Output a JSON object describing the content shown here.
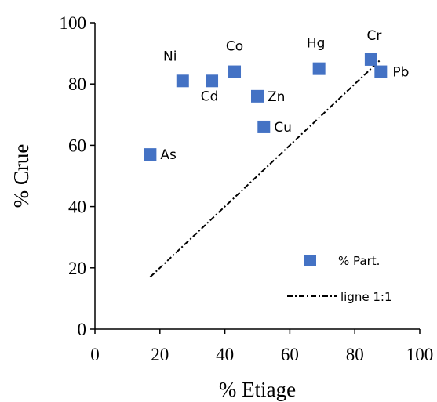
{
  "chart_data": {
    "type": "scatter",
    "xlabel": "% Etiage",
    "ylabel": "% Crue",
    "xlim": [
      0,
      100
    ],
    "ylim": [
      0,
      100
    ],
    "xticks": [
      "0",
      "20",
      "40",
      "60",
      "80",
      "100"
    ],
    "yticks": [
      "0",
      "20",
      "40",
      "60",
      "80",
      "100"
    ],
    "grid": false,
    "legend_position": "bottom-right",
    "series": [
      {
        "name": "% Part.",
        "color": "#4472C4",
        "marker": "square",
        "points": [
          {
            "label": "As",
            "x": 17,
            "y": 57
          },
          {
            "label": "Ni",
            "x": 27,
            "y": 81
          },
          {
            "label": "Cd",
            "x": 36,
            "y": 81
          },
          {
            "label": "Co",
            "x": 43,
            "y": 84
          },
          {
            "label": "Zn",
            "x": 50,
            "y": 76
          },
          {
            "label": "Cu",
            "x": 52,
            "y": 66
          },
          {
            "label": "Hg",
            "x": 69,
            "y": 85
          },
          {
            "label": "Cr",
            "x": 85,
            "y": 88
          },
          {
            "label": "Pb",
            "x": 88,
            "y": 84
          }
        ]
      },
      {
        "name": "ligne 1:1",
        "color": "#000000",
        "style": "dash-dot",
        "points": [
          {
            "x": 17,
            "y": 17
          },
          {
            "x": 88,
            "y": 88
          }
        ]
      }
    ]
  }
}
